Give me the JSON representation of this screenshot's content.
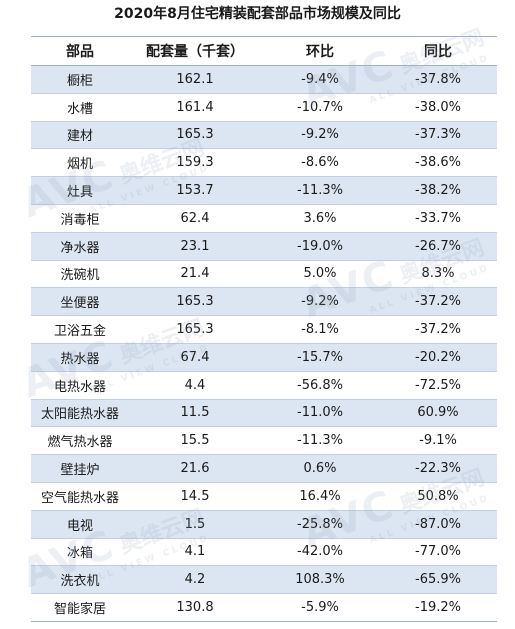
{
  "chart_data": {
    "type": "table",
    "title": "2020年8月住宅精装配套部品市场规模及同比",
    "columns": [
      "部品",
      "配套量（千套）",
      "环比",
      "同比"
    ],
    "rows": [
      {
        "name": "橱柜",
        "volume": "162.1",
        "mom": "-9.4%",
        "yoy": "-37.8%"
      },
      {
        "name": "水槽",
        "volume": "161.4",
        "mom": "-10.7%",
        "yoy": "-38.0%"
      },
      {
        "name": "建材",
        "volume": "165.3",
        "mom": "-9.2%",
        "yoy": "-37.3%"
      },
      {
        "name": "烟机",
        "volume": "159.3",
        "mom": "-8.6%",
        "yoy": "-38.6%"
      },
      {
        "name": "灶具",
        "volume": "153.7",
        "mom": "-11.3%",
        "yoy": "-38.2%"
      },
      {
        "name": "消毒柜",
        "volume": "62.4",
        "mom": "3.6%",
        "yoy": "-33.7%"
      },
      {
        "name": "净水器",
        "volume": "23.1",
        "mom": "-19.0%",
        "yoy": "-26.7%"
      },
      {
        "name": "洗碗机",
        "volume": "21.4",
        "mom": "5.0%",
        "yoy": "8.3%"
      },
      {
        "name": "坐便器",
        "volume": "165.3",
        "mom": "-9.2%",
        "yoy": "-37.2%"
      },
      {
        "name": "卫浴五金",
        "volume": "165.3",
        "mom": "-8.1%",
        "yoy": "-37.2%"
      },
      {
        "name": "热水器",
        "volume": "67.4",
        "mom": "-15.7%",
        "yoy": "-20.2%"
      },
      {
        "name": "电热水器",
        "volume": "4.4",
        "mom": "-56.8%",
        "yoy": "-72.5%"
      },
      {
        "name": "太阳能热水器",
        "volume": "11.5",
        "mom": "-11.0%",
        "yoy": "60.9%"
      },
      {
        "name": "燃气热水器",
        "volume": "15.5",
        "mom": "-11.3%",
        "yoy": "-9.1%"
      },
      {
        "name": "壁挂炉",
        "volume": "21.6",
        "mom": "0.6%",
        "yoy": "-22.3%"
      },
      {
        "name": "空气能热水器",
        "volume": "14.5",
        "mom": "16.4%",
        "yoy": "50.8%"
      },
      {
        "name": "电视",
        "volume": "1.5",
        "mom": "-25.8%",
        "yoy": "-87.0%"
      },
      {
        "name": "冰箱",
        "volume": "4.1",
        "mom": "-42.0%",
        "yoy": "-77.0%"
      },
      {
        "name": "洗衣机",
        "volume": "4.2",
        "mom": "108.3%",
        "yoy": "-65.9%"
      },
      {
        "name": "智能家居",
        "volume": "130.8",
        "mom": "-5.9%",
        "yoy": "-19.2%"
      }
    ]
  },
  "watermark": {
    "logo": "AVC",
    "cn": "奥维云网",
    "sub": "ALL VIEW CLOUD"
  },
  "colors": {
    "stripe": "#dce6f2",
    "border": "#9fb0cc"
  }
}
